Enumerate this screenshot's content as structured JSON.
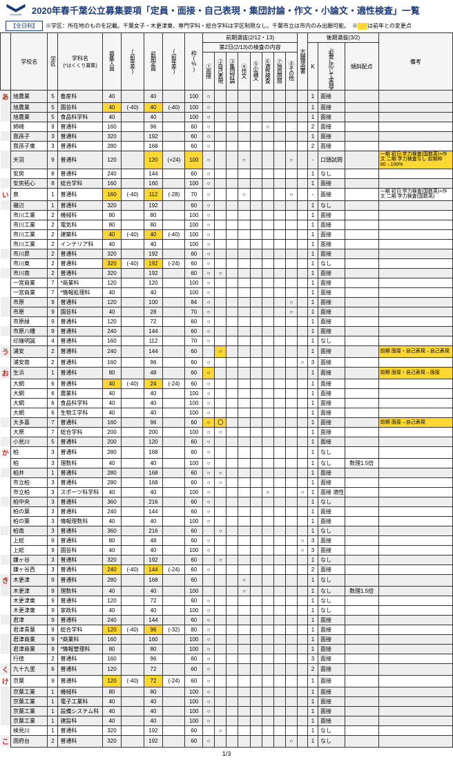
{
  "title": "2020年春千葉公立募集要項「定員・面接・自己表現・集団討論・作文・小論文・適性検査」一覧",
  "badge": "【全日制】",
  "note": "※学区：所在地のものを記載。千葉女子・木更津東、専門学科・総合学科は学区制限なし。千葉市立は市内のみ出願可能。　※",
  "legend": "は前年との変更点",
  "legend_color": "#fdd835",
  "hdr": {
    "school": "学校名",
    "zone": "学区",
    "dept": "学科名",
    "dept_sub": "(*はくくり募集)",
    "cap": "募集人員",
    "diff1_g": "(前年差)",
    "zenki_cap": "前期定員",
    "diff2_g": "(前年差)",
    "waku": "枠(%)",
    "zenki": "前期選抜(2/12・13)",
    "day2": "第2日(2/13)の検査の内容",
    "c1": "①面接",
    "c2": "②自己表現",
    "c3": "③集団討論",
    "c4": "④作文",
    "c5": "⑤小論文",
    "c6": "⑥適性検査",
    "c7": "⑦独自問題",
    "c8": "⑧その他",
    "riyuu": "志願理由書",
    "kouki": "後期選抜(3/2)",
    "k": "K",
    "hitsuyou": "必要に応じて実施する検査",
    "keisha": "傾斜配点",
    "bikou": "備考"
  },
  "row_labels": {
    "a": "あ",
    "i": "い",
    "u": "う",
    "o": "お",
    "ka": "か",
    "ki": "き",
    "ku": "く",
    "ke": "け",
    "ko": "こ"
  },
  "rows": [
    {
      "rl": "a",
      "alt": 1,
      "sc": "旭農業",
      "z": "5",
      "dp": "畜産科",
      "cap": "40",
      "d1": "",
      "zc": "40",
      "d2": "",
      "w": "100",
      "c1": "○",
      "k": "1",
      "ex": "面接"
    },
    {
      "alt": 1,
      "sc": "旭農業",
      "z": "5",
      "dp": "園芸科",
      "cap": "40",
      "cap_hl": 1,
      "d1": "(-40)",
      "zc": "40",
      "zc_hl": 1,
      "d2": "(-40)",
      "w": "100",
      "c1": "○",
      "k": "1",
      "ex": "面接"
    },
    {
      "alt": 1,
      "sc": "旭農業",
      "z": "5",
      "dp": "食品科学科",
      "cap": "40",
      "d1": "",
      "zc": "40",
      "d2": "",
      "w": "100",
      "c1": "○",
      "k": "1",
      "ex": "面接"
    },
    {
      "sc": "姉崎",
      "z": "9",
      "dp": "普通科",
      "cap": "160",
      "d1": "",
      "zc": "96",
      "d2": "",
      "w": "60",
      "c1": "○",
      "c6": "○",
      "k": "2",
      "ex": "面接"
    },
    {
      "alt": 1,
      "sc": "我孫子",
      "z": "3",
      "dp": "普通科",
      "cap": "320",
      "d1": "",
      "zc": "192",
      "d2": "",
      "w": "60",
      "c1": "○",
      "k": "1",
      "ex": "面接"
    },
    {
      "sc": "我孫子東",
      "z": "3",
      "dp": "普通科",
      "cap": "280",
      "d1": "",
      "zc": "168",
      "d2": "",
      "w": "60",
      "c1": "○",
      "k": "2",
      "ex": "面接"
    },
    {
      "alt": 1,
      "sc": "天羽",
      "z": "9",
      "dp": "普通科",
      "cap": "120",
      "d1": "",
      "zc": "120",
      "zc_hl": 1,
      "d2": "(+24)",
      "w": "100",
      "w_hl": 1,
      "c1": "○",
      "c4": "○",
      "c8": "○",
      "k": "-",
      "ex": "口頭試問 面接",
      "bk": "一期 初日:学力検査(国数英)+作文 二期 学力検査なし 前期枠80→100%",
      "bk_hl": 1
    },
    {
      "sc": "安房",
      "z": "8",
      "dp": "普通科",
      "cap": "240",
      "d1": "",
      "zc": "144",
      "d2": "",
      "w": "60",
      "c1": "○",
      "k": "1",
      "ex": "なし"
    },
    {
      "alt": 1,
      "sc": "安房拓心",
      "z": "8",
      "dp": "総合学科",
      "cap": "160",
      "d1": "",
      "zc": "160",
      "d2": "",
      "w": "100",
      "c1": "○",
      "k": "1",
      "ex": "面接"
    },
    {
      "rl": "i",
      "sc": "泉",
      "z": "1",
      "dp": "普通科",
      "cap": "160",
      "cap_hl": 1,
      "d1": "(-40)",
      "zc": "112",
      "zc_hl": 1,
      "d2": "(-28)",
      "w": "70",
      "c1": "○",
      "c4": "○",
      "c8": "○",
      "k": "-",
      "ex": "面接",
      "bk": "一期 初日:学力検査(国数英)+作文 二期 学力検査(国数英)"
    },
    {
      "alt": 1,
      "sc": "磯辺",
      "z": "1",
      "dp": "普通科",
      "cap": "320",
      "d1": "",
      "zc": "192",
      "d2": "",
      "w": "60",
      "c1": "○",
      "k": "1",
      "ex": "なし"
    },
    {
      "sc": "市川工業",
      "z": "2",
      "dp": "機械科",
      "cap": "80",
      "d1": "",
      "zc": "80",
      "d2": "",
      "w": "100",
      "c1": "○",
      "k": "1",
      "ex": "面接"
    },
    {
      "sc": "市川工業",
      "z": "2",
      "dp": "電気科",
      "cap": "80",
      "d1": "",
      "zc": "80",
      "d2": "",
      "w": "100",
      "c1": "○",
      "k": "1",
      "ex": "面接"
    },
    {
      "sc": "市川工業",
      "z": "2",
      "dp": "建築科",
      "cap": "40",
      "cap_hl": 1,
      "d1": "(-40)",
      "zc": "40",
      "zc_hl": 1,
      "d2": "(-40)",
      "w": "100",
      "c1": "○",
      "k": "1",
      "ex": "面接"
    },
    {
      "sc": "市川工業",
      "z": "2",
      "dp": "インテリア科",
      "cap": "40",
      "d1": "",
      "zc": "40",
      "d2": "",
      "w": "100",
      "c1": "○",
      "k": "1",
      "ex": "面接"
    },
    {
      "alt": 1,
      "sc": "市川昴",
      "z": "2",
      "dp": "普通科",
      "cap": "320",
      "d1": "",
      "zc": "192",
      "d2": "",
      "w": "60",
      "c1": "○",
      "k": "1",
      "ex": "面接"
    },
    {
      "sc": "市川東",
      "z": "2",
      "dp": "普通科",
      "cap": "320",
      "cap_hl": 1,
      "d1": "(-40)",
      "zc": "192",
      "zc_hl": 1,
      "d2": "(-24)",
      "w": "60",
      "c1": "○",
      "k": "1",
      "ex": "なし"
    },
    {
      "alt": 1,
      "sc": "市川南",
      "z": "2",
      "dp": "普通科",
      "cap": "320",
      "d1": "",
      "zc": "192",
      "d2": "",
      "w": "60",
      "c1": "○",
      "c2": "○",
      "k": "1",
      "ex": "面接"
    },
    {
      "sc": "一宮商業",
      "z": "7",
      "dp": "*商業科",
      "cap": "120",
      "d1": "",
      "zc": "120",
      "d2": "",
      "w": "100",
      "c1": "○",
      "k": "1",
      "ex": "面接"
    },
    {
      "sc": "一宮商業",
      "z": "7",
      "dp": "*情報処理科",
      "cap": "40",
      "d1": "",
      "zc": "40",
      "d2": "",
      "w": "100",
      "c1": "○",
      "k": "1",
      "ex": "面接"
    },
    {
      "alt": 1,
      "sc": "市原",
      "z": "9",
      "dp": "普通科",
      "cap": "120",
      "d1": "",
      "zc": "100",
      "d2": "",
      "w": "84",
      "c1": "○",
      "c8": "○",
      "k": "1",
      "ex": "面接"
    },
    {
      "alt": 1,
      "sc": "市原",
      "z": "9",
      "dp": "園芸科",
      "cap": "40",
      "d1": "",
      "zc": "28",
      "d2": "",
      "w": "70",
      "c1": "○",
      "c8": "○",
      "k": "1",
      "ex": "面接"
    },
    {
      "sc": "市原緑",
      "z": "9",
      "dp": "普通科",
      "cap": "120",
      "d1": "",
      "zc": "72",
      "d2": "",
      "w": "60",
      "c1": "○",
      "k": "1",
      "ex": "面接"
    },
    {
      "alt": 1,
      "sc": "市原八幡",
      "z": "9",
      "dp": "普通科",
      "cap": "240",
      "d1": "",
      "zc": "144",
      "d2": "",
      "w": "60",
      "c1": "○",
      "k": "1",
      "ex": "面接"
    },
    {
      "sc": "印旛明誠",
      "z": "4",
      "dp": "普通科",
      "cap": "160",
      "d1": "",
      "zc": "112",
      "d2": "",
      "w": "70",
      "c1": "○",
      "k": "1",
      "ex": "なし"
    },
    {
      "rl": "u",
      "alt": 1,
      "sc": "浦安",
      "z": "2",
      "dp": "普通科",
      "cap": "240",
      "d1": "",
      "zc": "144",
      "d2": "",
      "w": "60",
      "c2": "○",
      "c2_hl": 1,
      "k": "1",
      "ex": "面接",
      "bk": "前期 面接・自己表現→自己表現",
      "bk_hl": 1
    },
    {
      "sc": "浦安南",
      "z": "2",
      "dp": "普通科",
      "cap": "160",
      "d1": "",
      "zc": "96",
      "d2": "",
      "w": "60",
      "c1": "○",
      "r": "○",
      "k": "3",
      "ex": "面接"
    },
    {
      "rl": "o",
      "alt": 1,
      "sc": "生浜",
      "z": "1",
      "dp": "普通科",
      "cap": "80",
      "d1": "",
      "zc": "48",
      "d2": "",
      "w": "60",
      "c1": "○",
      "c1_hl": 1,
      "k": "1",
      "ex": "面接",
      "bk": "前期 面接・自己表現→面接",
      "bk_hl": 1
    },
    {
      "sc": "大網",
      "z": "6",
      "dp": "普通科",
      "cap": "40",
      "cap_hl": 1,
      "d1": "(-40)",
      "zc": "24",
      "zc_hl": 1,
      "d2": "(-24)",
      "w": "60",
      "c1": "○",
      "k": "1",
      "ex": "面接"
    },
    {
      "sc": "大網",
      "z": "6",
      "dp": "農業科",
      "cap": "40",
      "d1": "",
      "zc": "40",
      "d2": "",
      "w": "100",
      "c1": "○",
      "k": "1",
      "ex": "面接"
    },
    {
      "sc": "大網",
      "z": "6",
      "dp": "食品科学科",
      "cap": "40",
      "d1": "",
      "zc": "40",
      "d2": "",
      "w": "100",
      "c1": "○",
      "k": "1",
      "ex": "面接"
    },
    {
      "sc": "大網",
      "z": "6",
      "dp": "生物工学科",
      "cap": "40",
      "d1": "",
      "zc": "40",
      "d2": "",
      "w": "100",
      "c1": "○",
      "k": "1",
      "ex": "面接"
    },
    {
      "alt": 1,
      "sc": "大多喜",
      "z": "7",
      "dp": "普通科",
      "cap": "160",
      "d1": "",
      "zc": "96",
      "d2": "",
      "w": "60",
      "c1": "○",
      "c1_hl": 1,
      "c2": "〇",
      "c2_hl": 1,
      "k": "1",
      "ex": "面接",
      "bk": "前期 面接→自己表現",
      "bk_hl": 1
    },
    {
      "sc": "大原",
      "z": "7",
      "dp": "総合学科",
      "cap": "200",
      "d1": "",
      "zc": "200",
      "d2": "",
      "w": "100",
      "c1": "○",
      "c2": "○",
      "k": "1",
      "ex": "面接"
    },
    {
      "alt": 1,
      "sc": "小見川",
      "z": "5",
      "dp": "普通科",
      "cap": "200",
      "d1": "",
      "zc": "120",
      "d2": "",
      "w": "60",
      "c1": "○",
      "k": "1",
      "ex": "面接"
    },
    {
      "rl": "ka",
      "sc": "柏",
      "z": "3",
      "dp": "普通科",
      "cap": "280",
      "d1": "",
      "zc": "168",
      "d2": "",
      "w": "60",
      "c1": "○",
      "k": "1",
      "ex": "なし"
    },
    {
      "sc": "柏",
      "z": "3",
      "dp": "理数科",
      "cap": "40",
      "d1": "",
      "zc": "40",
      "d2": "",
      "w": "100",
      "c1": "○",
      "k": "1",
      "ex": "なし",
      "ks": "数理1.5倍"
    },
    {
      "alt": 1,
      "sc": "柏井",
      "z": "1",
      "dp": "普通科",
      "cap": "280",
      "d1": "",
      "zc": "168",
      "d2": "",
      "w": "60",
      "c1": "○",
      "c2": "○",
      "k": "1",
      "ex": "面接"
    },
    {
      "sc": "市立柏",
      "z": "3",
      "dp": "普通科",
      "cap": "280",
      "d1": "",
      "zc": "168",
      "d2": "",
      "w": "60",
      "c1": "○",
      "c2": "○",
      "k": "1",
      "ex": "面接"
    },
    {
      "sc": "市立柏",
      "z": "3",
      "dp": "スポーツ科学科",
      "cap": "40",
      "d1": "",
      "zc": "40",
      "d2": "",
      "w": "100",
      "c1": "○",
      "c6": "○",
      "r": "○",
      "k": "1",
      "ex": "面接 適性"
    },
    {
      "alt": 1,
      "sc": "柏中央",
      "z": "3",
      "dp": "普通科",
      "cap": "360",
      "d1": "",
      "zc": "216",
      "d2": "",
      "w": "60",
      "c1": "○",
      "k": "1",
      "ex": "なし"
    },
    {
      "sc": "柏の葉",
      "z": "3",
      "dp": "普通科",
      "cap": "240",
      "d1": "",
      "zc": "144",
      "d2": "",
      "w": "60",
      "c1": "○",
      "k": "1",
      "ex": "面接"
    },
    {
      "sc": "柏の葉",
      "z": "3",
      "dp": "情報理数科",
      "cap": "40",
      "d1": "",
      "zc": "40",
      "d2": "",
      "w": "100",
      "c1": "○",
      "k": "1",
      "ex": "面接"
    },
    {
      "alt": 1,
      "sc": "柏南",
      "z": "3",
      "dp": "普通科",
      "cap": "360",
      "d1": "",
      "zc": "216",
      "d2": "",
      "w": "60",
      "c2": "○",
      "k": "1",
      "ex": "なし"
    },
    {
      "sc": "上総",
      "z": "9",
      "dp": "普通科",
      "cap": "80",
      "d1": "",
      "zc": "48",
      "d2": "",
      "w": "60",
      "c1": "○",
      "r": "○",
      "k": "3",
      "ex": "面接"
    },
    {
      "sc": "上総",
      "z": "9",
      "dp": "園芸科",
      "cap": "40",
      "d1": "",
      "zc": "40",
      "d2": "",
      "w": "100",
      "c1": "○",
      "r": "○",
      "k": "3",
      "ex": "面接"
    },
    {
      "alt": 1,
      "sc": "鎌ヶ谷",
      "z": "3",
      "dp": "普通科",
      "cap": "320",
      "d1": "",
      "zc": "192",
      "d2": "",
      "w": "60",
      "c2": "○",
      "k": "1",
      "ex": "なし"
    },
    {
      "sc": "鎌ヶ谷西",
      "z": "3",
      "dp": "普通科",
      "cap": "240",
      "cap_hl": 1,
      "d1": "(-40)",
      "zc": "144",
      "zc_hl": 1,
      "d2": "(-24)",
      "w": "60",
      "c1": "○",
      "k": "2",
      "ex": "面接"
    },
    {
      "rl": "ki",
      "alt": 1,
      "sc": "木更津",
      "z": "9",
      "dp": "普通科",
      "cap": "280",
      "d1": "",
      "zc": "168",
      "d2": "",
      "w": "60",
      "c4": "○",
      "k": "1",
      "ex": "なし"
    },
    {
      "alt": 1,
      "sc": "木更津",
      "z": "9",
      "dp": "理数科",
      "cap": "40",
      "d1": "",
      "zc": "40",
      "d2": "",
      "w": "100",
      "c4": "○",
      "k": "1",
      "ex": "なし",
      "ks": "数理1.5倍"
    },
    {
      "sc": "木更津東",
      "z": "9",
      "dp": "普通科",
      "cap": "120",
      "d1": "",
      "zc": "72",
      "d2": "",
      "w": "60",
      "c1": "○",
      "k": "1",
      "ex": "なし"
    },
    {
      "sc": "木更津東",
      "z": "9",
      "dp": "家政科",
      "cap": "40",
      "d1": "",
      "zc": "40",
      "d2": "",
      "w": "100",
      "c1": "○",
      "k": "1",
      "ex": "なし"
    },
    {
      "alt": 1,
      "sc": "君津",
      "z": "9",
      "dp": "普通科",
      "cap": "240",
      "d1": "",
      "zc": "144",
      "d2": "",
      "w": "60",
      "c1": "○",
      "k": "1",
      "ex": "面接"
    },
    {
      "sc": "君津青葉",
      "z": "9",
      "dp": "総合学科",
      "cap": "120",
      "cap_hl": 1,
      "d1": "(-40)",
      "zc": "96",
      "zc_hl": 1,
      "d2": "(-32)",
      "w": "80",
      "c1": "○",
      "k": "1",
      "ex": "面接"
    },
    {
      "alt": 1,
      "sc": "君津商業",
      "z": "9",
      "dp": "*商業科",
      "cap": "160",
      "d1": "",
      "zc": "160",
      "d2": "",
      "w": "100",
      "c1": "○",
      "k": "1",
      "ex": "面接"
    },
    {
      "alt": 1,
      "sc": "君津商業",
      "z": "9",
      "dp": "*情報管理科",
      "cap": "80",
      "d1": "",
      "zc": "80",
      "d2": "",
      "w": "100",
      "c1": "○",
      "k": "1",
      "ex": "面接"
    },
    {
      "sc": "行徳",
      "z": "2",
      "dp": "普通科",
      "cap": "160",
      "d1": "",
      "zc": "96",
      "d2": "",
      "w": "60",
      "c1": "○",
      "k": "3",
      "ex": "面接"
    },
    {
      "rl": "ku",
      "alt": 1,
      "sc": "九十九里",
      "z": "6",
      "dp": "普通科",
      "cap": "120",
      "d1": "",
      "zc": "72",
      "d2": "",
      "w": "60",
      "c1": "○",
      "k": "2",
      "ex": "面接"
    },
    {
      "rl": "ke",
      "sc": "京葉",
      "z": "9",
      "dp": "普通科",
      "cap": "120",
      "cap_hl": 1,
      "d1": "(-40)",
      "zc": "72",
      "zc_hl": 1,
      "d2": "(-24)",
      "w": "60",
      "c1": "○",
      "k": "1",
      "ex": "面接"
    },
    {
      "alt": 1,
      "sc": "京葉工業",
      "z": "1",
      "dp": "機械科",
      "cap": "80",
      "d1": "",
      "zc": "80",
      "d2": "",
      "w": "100",
      "c1": "○",
      "k": "1",
      "ex": "面接"
    },
    {
      "alt": 1,
      "sc": "京葉工業",
      "z": "1",
      "dp": "電子工業科",
      "cap": "40",
      "d1": "",
      "zc": "40",
      "d2": "",
      "w": "100",
      "c1": "○",
      "k": "1",
      "ex": "面接"
    },
    {
      "alt": 1,
      "sc": "京葉工業",
      "z": "1",
      "dp": "設備システム科",
      "cap": "40",
      "d1": "",
      "zc": "40",
      "d2": "",
      "w": "100",
      "c1": "○",
      "k": "1",
      "ex": "面接"
    },
    {
      "alt": 1,
      "sc": "京葉工業",
      "z": "1",
      "dp": "建設科",
      "cap": "40",
      "d1": "",
      "zc": "40",
      "d2": "",
      "w": "100",
      "c1": "○",
      "k": "1",
      "ex": "面接"
    },
    {
      "sc": "検見川",
      "z": "1",
      "dp": "普通科",
      "cap": "320",
      "d1": "",
      "zc": "192",
      "d2": "",
      "w": "60",
      "c2": "○",
      "k": "1",
      "ex": "なし"
    },
    {
      "rl": "ko",
      "alt": 1,
      "sc": "国府台",
      "z": "2",
      "dp": "普通科",
      "cap": "320",
      "d1": "",
      "zc": "192",
      "d2": "",
      "w": "60",
      "c1": "○",
      "c8": "○",
      "k": "1",
      "ex": "なし"
    }
  ],
  "footer": "1/3"
}
